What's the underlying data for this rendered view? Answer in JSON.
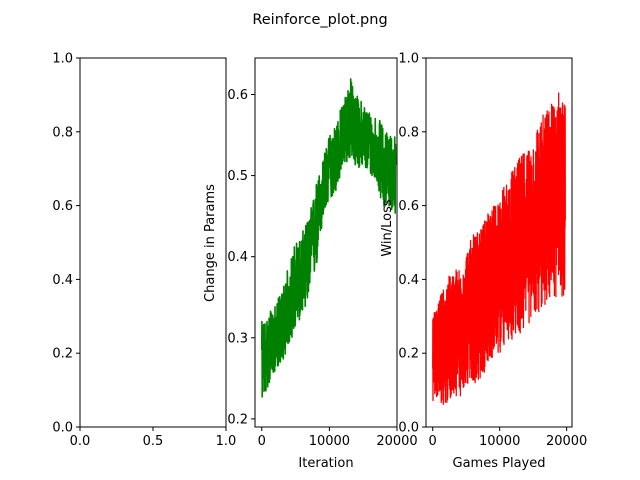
{
  "figure": {
    "title": "Reinforce_plot.png"
  },
  "chart_data": [
    {
      "type": "line",
      "title": "",
      "xlabel": "",
      "ylabel": "",
      "xlim": [
        0.0,
        1.0
      ],
      "ylim": [
        0.0,
        1.0
      ],
      "xticks": [
        0.0,
        0.5,
        1.0
      ],
      "xtick_labels": [
        "0.0",
        "0.5",
        "1.0"
      ],
      "yticks": [
        0.0,
        0.2,
        0.4,
        0.6,
        0.8,
        1.0
      ],
      "ytick_labels": [
        "0.0",
        "0.2",
        "0.4",
        "0.6",
        "0.8",
        "1.0"
      ],
      "series": []
    },
    {
      "type": "line",
      "title": "",
      "xlabel": "Iteration",
      "ylabel": "Change in Params",
      "xlim": [
        -1000,
        20000
      ],
      "ylim": [
        0.19,
        0.645
      ],
      "xticks": [
        0,
        10000,
        20000
      ],
      "xtick_labels": [
        "0",
        "10000",
        "20000"
      ],
      "yticks": [
        0.2,
        0.3,
        0.4,
        0.5,
        0.6
      ],
      "ytick_labels": [
        "0.2",
        "0.3",
        "0.4",
        "0.5",
        "0.6"
      ],
      "color": "#008000",
      "series": [
        {
          "x": [
            0,
            1000,
            2000,
            3000,
            4000,
            5000,
            6000,
            7000,
            8000,
            9000,
            10000,
            11000,
            12000,
            13000,
            14000,
            15000,
            16000,
            17000,
            18000,
            19000,
            19800
          ],
          "y_mid": [
            0.27,
            0.28,
            0.29,
            0.3,
            0.33,
            0.35,
            0.37,
            0.39,
            0.44,
            0.48,
            0.51,
            0.52,
            0.54,
            0.56,
            0.54,
            0.55,
            0.54,
            0.53,
            0.51,
            0.52,
            0.5
          ],
          "y_min": [
            0.22,
            0.24,
            0.26,
            0.27,
            0.29,
            0.31,
            0.33,
            0.35,
            0.38,
            0.44,
            0.47,
            0.48,
            0.51,
            0.52,
            0.51,
            0.51,
            0.5,
            0.49,
            0.46,
            0.46,
            0.45
          ],
          "y_max": [
            0.32,
            0.33,
            0.34,
            0.36,
            0.39,
            0.42,
            0.43,
            0.45,
            0.49,
            0.52,
            0.55,
            0.57,
            0.59,
            0.625,
            0.6,
            0.59,
            0.58,
            0.575,
            0.56,
            0.55,
            0.55
          ]
        }
      ]
    },
    {
      "type": "line",
      "title": "",
      "xlabel": "Games Played",
      "ylabel": "Win/Loss",
      "xlim": [
        -1000,
        20800
      ],
      "ylim": [
        0.0,
        1.0
      ],
      "xticks": [
        0,
        10000,
        20000
      ],
      "xtick_labels": [
        "0",
        "10000",
        "20000"
      ],
      "yticks": [
        0.0,
        0.2,
        0.4,
        0.6,
        0.8,
        1.0
      ],
      "ytick_labels": [
        "0.0",
        "0.2",
        "0.4",
        "0.6",
        "0.8",
        "1.0"
      ],
      "color": "#ff0000",
      "series": [
        {
          "x": [
            0,
            1000,
            2000,
            3000,
            4000,
            5000,
            6000,
            7000,
            8000,
            9000,
            10000,
            11000,
            12000,
            13000,
            14000,
            15000,
            16000,
            17000,
            18000,
            19000,
            19800
          ],
          "y_mid": [
            0.19,
            0.22,
            0.24,
            0.26,
            0.27,
            0.29,
            0.31,
            0.33,
            0.36,
            0.38,
            0.4,
            0.43,
            0.45,
            0.47,
            0.5,
            0.52,
            0.55,
            0.57,
            0.59,
            0.61,
            0.62
          ],
          "y_min": [
            0.07,
            0.07,
            0.05,
            0.09,
            0.08,
            0.1,
            0.12,
            0.12,
            0.16,
            0.19,
            0.19,
            0.22,
            0.24,
            0.24,
            0.27,
            0.29,
            0.31,
            0.33,
            0.35,
            0.35,
            0.35
          ],
          "y_max": [
            0.3,
            0.36,
            0.4,
            0.42,
            0.44,
            0.48,
            0.52,
            0.53,
            0.57,
            0.6,
            0.64,
            0.66,
            0.7,
            0.73,
            0.76,
            0.79,
            0.84,
            0.86,
            0.89,
            0.92,
            0.88
          ]
        }
      ]
    }
  ]
}
